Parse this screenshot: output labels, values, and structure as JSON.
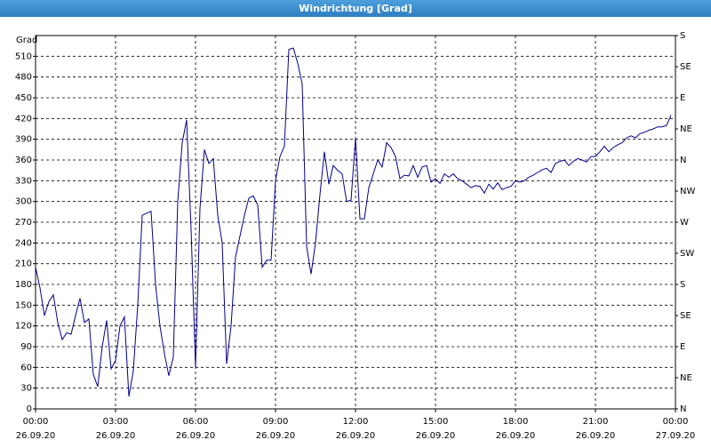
{
  "chart_data": {
    "type": "line",
    "title": "Windrichtung [Grad]",
    "y_label": "Grad",
    "xlim": [
      "26.09.20 00:00",
      "27.09.20 00:00"
    ],
    "xticks": [
      {
        "value": "26.09.20 00:00",
        "label": [
          "00:00",
          "26.09.20"
        ]
      },
      {
        "value": "26.09.20 03:00",
        "label": [
          "03:00",
          "26.09.20"
        ]
      },
      {
        "value": "26.09.20 06:00",
        "label": [
          "06:00",
          "26.09.20"
        ]
      },
      {
        "value": "26.09.20 09:00",
        "label": [
          "09:00",
          "26.09.20"
        ]
      },
      {
        "value": "26.09.20 12:00",
        "label": [
          "12:00",
          "26.09.20"
        ]
      },
      {
        "value": "26.09.20 15:00",
        "label": [
          "15:00",
          "26.09.20"
        ]
      },
      {
        "value": "26.09.20 18:00",
        "label": [
          "18:00",
          "26.09.20"
        ]
      },
      {
        "value": "26.09.20 21:00",
        "label": [
          "21:00",
          "26.09.20"
        ]
      },
      {
        "value": "27.09.20 00:00",
        "label": [
          "00:00",
          "27.09.20"
        ]
      }
    ],
    "ylim": [
      0,
      540
    ],
    "yticks": [
      0,
      30,
      60,
      90,
      120,
      150,
      180,
      210,
      240,
      270,
      300,
      330,
      360,
      390,
      420,
      450,
      480,
      510
    ],
    "y2lim": [
      0,
      540
    ],
    "y2ticks": [
      {
        "value": 0,
        "label": "N"
      },
      {
        "value": 45,
        "label": "NE"
      },
      {
        "value": 90,
        "label": "E"
      },
      {
        "value": 135,
        "label": "SE"
      },
      {
        "value": 180,
        "label": "S"
      },
      {
        "value": 225,
        "label": "SW"
      },
      {
        "value": 270,
        "label": "W"
      },
      {
        "value": 315,
        "label": "NW"
      },
      {
        "value": 360,
        "label": "N"
      },
      {
        "value": 405,
        "label": "NE"
      },
      {
        "value": 450,
        "label": "E"
      },
      {
        "value": 495,
        "label": "SE"
      },
      {
        "value": 540,
        "label": "S"
      }
    ],
    "grid": true,
    "x": [
      "26.09.20 00:00",
      "26.09.20 00:10",
      "26.09.20 00:20",
      "26.09.20 00:30",
      "26.09.20 00:40",
      "26.09.20 00:50",
      "26.09.20 01:00",
      "26.09.20 01:10",
      "26.09.20 01:20",
      "26.09.20 01:30",
      "26.09.20 01:40",
      "26.09.20 01:50",
      "26.09.20 02:00",
      "26.09.20 02:10",
      "26.09.20 02:20",
      "26.09.20 02:30",
      "26.09.20 02:40",
      "26.09.20 02:50",
      "26.09.20 03:00",
      "26.09.20 03:10",
      "26.09.20 03:20",
      "26.09.20 03:30",
      "26.09.20 03:40",
      "26.09.20 03:50",
      "26.09.20 04:00",
      "26.09.20 04:10",
      "26.09.20 04:20",
      "26.09.20 04:30",
      "26.09.20 04:40",
      "26.09.20 04:50",
      "26.09.20 05:00",
      "26.09.20 05:10",
      "26.09.20 05:20",
      "26.09.20 05:30",
      "26.09.20 05:40",
      "26.09.20 05:50",
      "26.09.20 06:00",
      "26.09.20 06:10",
      "26.09.20 06:20",
      "26.09.20 06:30",
      "26.09.20 06:40",
      "26.09.20 06:50",
      "26.09.20 07:00",
      "26.09.20 07:10",
      "26.09.20 07:20",
      "26.09.20 07:30",
      "26.09.20 07:40",
      "26.09.20 07:50",
      "26.09.20 08:00",
      "26.09.20 08:10",
      "26.09.20 08:20",
      "26.09.20 08:30",
      "26.09.20 08:40",
      "26.09.20 08:50",
      "26.09.20 09:00",
      "26.09.20 09:10",
      "26.09.20 09:20",
      "26.09.20 09:30",
      "26.09.20 09:40",
      "26.09.20 09:50",
      "26.09.20 10:00",
      "26.09.20 10:10",
      "26.09.20 10:20",
      "26.09.20 10:30",
      "26.09.20 10:40",
      "26.09.20 10:50",
      "26.09.20 11:00",
      "26.09.20 11:10",
      "26.09.20 11:20",
      "26.09.20 11:30",
      "26.09.20 11:40",
      "26.09.20 11:50",
      "26.09.20 12:00",
      "26.09.20 12:10",
      "26.09.20 12:20",
      "26.09.20 12:30",
      "26.09.20 12:40",
      "26.09.20 12:50",
      "26.09.20 13:00",
      "26.09.20 13:10",
      "26.09.20 13:20",
      "26.09.20 13:30",
      "26.09.20 13:40",
      "26.09.20 13:50",
      "26.09.20 14:00",
      "26.09.20 14:10",
      "26.09.20 14:20",
      "26.09.20 14:30",
      "26.09.20 14:40",
      "26.09.20 14:50",
      "26.09.20 15:00",
      "26.09.20 15:10",
      "26.09.20 15:20",
      "26.09.20 15:30",
      "26.09.20 15:40",
      "26.09.20 15:50",
      "26.09.20 16:00",
      "26.09.20 16:10",
      "26.09.20 16:20",
      "26.09.20 16:30",
      "26.09.20 16:40",
      "26.09.20 16:50",
      "26.09.20 17:00",
      "26.09.20 17:10",
      "26.09.20 17:20",
      "26.09.20 17:30",
      "26.09.20 17:40",
      "26.09.20 17:50",
      "26.09.20 18:00",
      "26.09.20 18:10",
      "26.09.20 18:20",
      "26.09.20 18:30",
      "26.09.20 18:40",
      "26.09.20 18:50",
      "26.09.20 19:00",
      "26.09.20 19:10",
      "26.09.20 19:20",
      "26.09.20 19:30",
      "26.09.20 19:40",
      "26.09.20 19:50",
      "26.09.20 20:00",
      "26.09.20 20:10",
      "26.09.20 20:20",
      "26.09.20 20:30",
      "26.09.20 20:40",
      "26.09.20 20:50",
      "26.09.20 21:00",
      "26.09.20 21:10",
      "26.09.20 21:20",
      "26.09.20 21:30",
      "26.09.20 21:40",
      "26.09.20 21:50",
      "26.09.20 22:00",
      "26.09.20 22:10",
      "26.09.20 22:20",
      "26.09.20 22:30",
      "26.09.20 22:40",
      "26.09.20 22:50",
      "26.09.20 23:00",
      "26.09.20 23:10",
      "26.09.20 23:20",
      "26.09.20 23:30",
      "26.09.20 23:40",
      "26.09.20 23:50"
    ],
    "series": [
      {
        "name": "Windrichtung",
        "color": "#00008b",
        "values": [
          205,
          175,
          135,
          155,
          165,
          125,
          100,
          110,
          108,
          135,
          160,
          125,
          130,
          50,
          32,
          90,
          128,
          58,
          70,
          120,
          133,
          18,
          55,
          150,
          280,
          283,
          286,
          180,
          120,
          80,
          48,
          75,
          300,
          385,
          418,
          260,
          60,
          290,
          375,
          355,
          362,
          280,
          240,
          65,
          120,
          220,
          250,
          280,
          305,
          308,
          295,
          205,
          215,
          215,
          330,
          365,
          380,
          520,
          522,
          500,
          470,
          235,
          195,
          240,
          310,
          372,
          325,
          352,
          345,
          340,
          300,
          302,
          392,
          275,
          275,
          320,
          340,
          360,
          350,
          385,
          378,
          365,
          333,
          338,
          337,
          352,
          335,
          350,
          352,
          328,
          333,
          326,
          340,
          335,
          340,
          333,
          330,
          325,
          320,
          323,
          322,
          312,
          325,
          318,
          327,
          317,
          320,
          322,
          330,
          328,
          330,
          335,
          338,
          342,
          346,
          348,
          342,
          355,
          358,
          360,
          352,
          358,
          362,
          360,
          357,
          365,
          365,
          372,
          380,
          372,
          378,
          382,
          385,
          392,
          395,
          392,
          398,
          400,
          403,
          405,
          408,
          408,
          410,
          425
        ]
      }
    ]
  }
}
